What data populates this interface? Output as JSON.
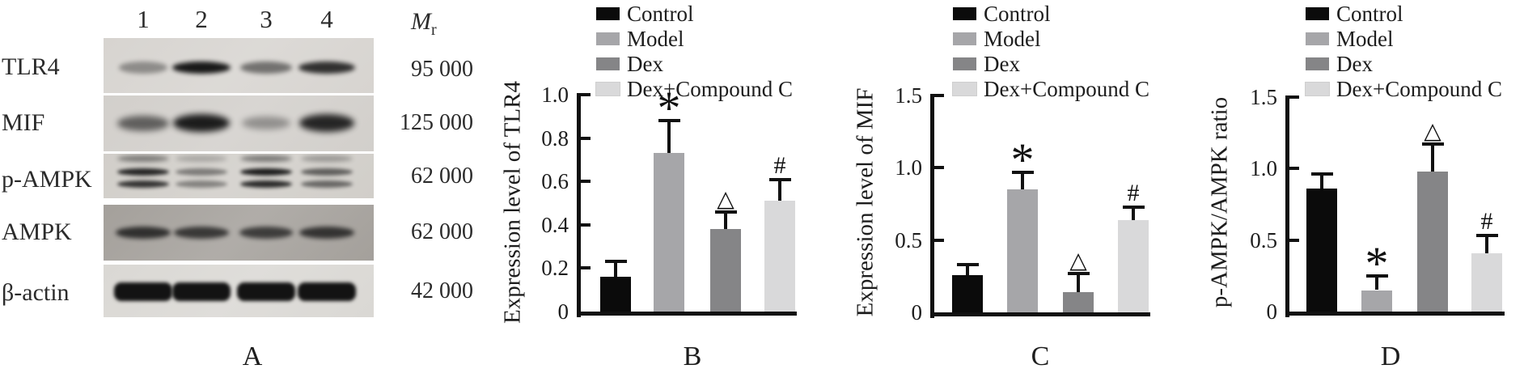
{
  "panel_a": {
    "caption": "A",
    "lane_numbers": [
      "1",
      "2",
      "3",
      "4"
    ],
    "mr_header": {
      "symbol": "M",
      "subscript": "r"
    },
    "rows": [
      {
        "label": "TLR4",
        "mr": "95 000",
        "band_style": "single",
        "strip_bg": "#d7d4d0",
        "intensities": [
          0.38,
          0.97,
          0.52,
          0.85
        ]
      },
      {
        "label": "MIF",
        "mr": "125 000",
        "band_style": "blob",
        "strip_bg": "#d2cfcb",
        "intensities": [
          0.6,
          0.95,
          0.35,
          0.9
        ]
      },
      {
        "label": "p-AMPK",
        "mr": "62 000",
        "band_style": "double",
        "strip_bg": "#d1cec9",
        "intensities": [
          0.9,
          0.45,
          0.95,
          0.6
        ]
      },
      {
        "label": "AMPK",
        "mr": "62 000",
        "band_style": "single",
        "strip_bg": "#a4a09b",
        "intensities": [
          0.8,
          0.75,
          0.72,
          0.78
        ]
      },
      {
        "label": "β-actin",
        "mr": "42 000",
        "band_style": "thick",
        "strip_bg": "#dad8d4",
        "intensities": [
          1.0,
          1.0,
          1.0,
          1.0
        ]
      }
    ]
  },
  "legend": {
    "items": [
      {
        "label": "Control",
        "color": "#0b0b0b"
      },
      {
        "label": "Model",
        "color": "#a6a6a9"
      },
      {
        "label": "Dex",
        "color": "#858587"
      },
      {
        "label": "Dex+Compound C",
        "color": "#d9d9da"
      }
    ]
  },
  "chart_data": [
    {
      "type": "bar",
      "panel": "B",
      "ylabel": "Expression level of TLR4",
      "ylim": [
        0,
        1.0
      ],
      "yticks": [
        0,
        0.2,
        0.4,
        0.6,
        0.8,
        1.0
      ],
      "ytick_labels": [
        "0",
        "0.2",
        "0.4",
        "0.6",
        "0.8",
        "1.0"
      ],
      "categories": [
        "Control",
        "Model",
        "Dex",
        "Dex+Compound C"
      ],
      "values": [
        0.16,
        0.73,
        0.38,
        0.51
      ],
      "errors": [
        0.07,
        0.15,
        0.08,
        0.1
      ],
      "sig_markers": [
        "",
        "*",
        "△",
        "#"
      ],
      "grid": false,
      "legend_position": "top"
    },
    {
      "type": "bar",
      "panel": "C",
      "ylabel": "Expression level of MIF",
      "ylim": [
        0,
        1.5
      ],
      "yticks": [
        0,
        0.5,
        1.0,
        1.5
      ],
      "ytick_labels": [
        "0",
        "0.5",
        "1.0",
        "1.5"
      ],
      "categories": [
        "Control",
        "Model",
        "Dex",
        "Dex+Compound C"
      ],
      "values": [
        0.26,
        0.85,
        0.14,
        0.64
      ],
      "errors": [
        0.07,
        0.12,
        0.13,
        0.09
      ],
      "sig_markers": [
        "",
        "*",
        "△",
        "#"
      ],
      "grid": false,
      "legend_position": "top"
    },
    {
      "type": "bar",
      "panel": "D",
      "ylabel": "p-AMPK/AMPK ratio",
      "ylim": [
        0,
        1.5
      ],
      "yticks": [
        0,
        0.5,
        1.0,
        1.5
      ],
      "ytick_labels": [
        "0",
        "0.5",
        "1.0",
        "1.5"
      ],
      "categories": [
        "Control",
        "Model",
        "Dex",
        "Dex+Compound C"
      ],
      "values": [
        0.86,
        0.15,
        0.98,
        0.41
      ],
      "errors": [
        0.1,
        0.1,
        0.19,
        0.12
      ],
      "sig_markers": [
        "",
        "*",
        "△",
        "#"
      ],
      "grid": false,
      "legend_position": "top"
    }
  ]
}
